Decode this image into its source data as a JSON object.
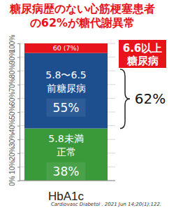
{
  "chart_data": {
    "type": "bar",
    "stacked": true,
    "data_labels": true,
    "grid": true,
    "title": "糖尿病歴のない心筋梗塞患者\nの62%が糖代謝異常",
    "categories": [
      "HbA1c"
    ],
    "series": [
      {
        "name": "5.8未満\n正常",
        "color": "#3a9a3a",
        "values": [
          38
        ],
        "value_labels": [
          "38%"
        ]
      },
      {
        "name": "5.8〜6.5\n前糖尿病",
        "color": "#1d4f8f",
        "values": [
          55
        ],
        "value_labels": [
          "55%"
        ]
      },
      {
        "name": "6.6以上\n糖尿病",
        "color": "#e8141b",
        "values": [
          7
        ],
        "value_labels": [
          "60 (7%)"
        ]
      }
    ],
    "ylim": [
      0,
      100
    ],
    "yticks": [
      {
        "value": 0,
        "label": "0%"
      },
      {
        "value": 10,
        "label": "10%"
      },
      {
        "value": 20,
        "label": "20%"
      },
      {
        "value": 30,
        "label": "30%"
      },
      {
        "value": 40,
        "label": "40%"
      },
      {
        "value": 50,
        "label": "50%"
      },
      {
        "value": 60,
        "label": "60%"
      },
      {
        "value": 70,
        "label": "70%"
      },
      {
        "value": 80,
        "label": "80%"
      },
      {
        "value": 90,
        "label": "90%"
      },
      {
        "value": 100,
        "label": "100%"
      }
    ],
    "annotations": [
      "62%",
      "Cardiovasc Diabetol . 2021 Jun 14;20(1):122."
    ]
  }
}
